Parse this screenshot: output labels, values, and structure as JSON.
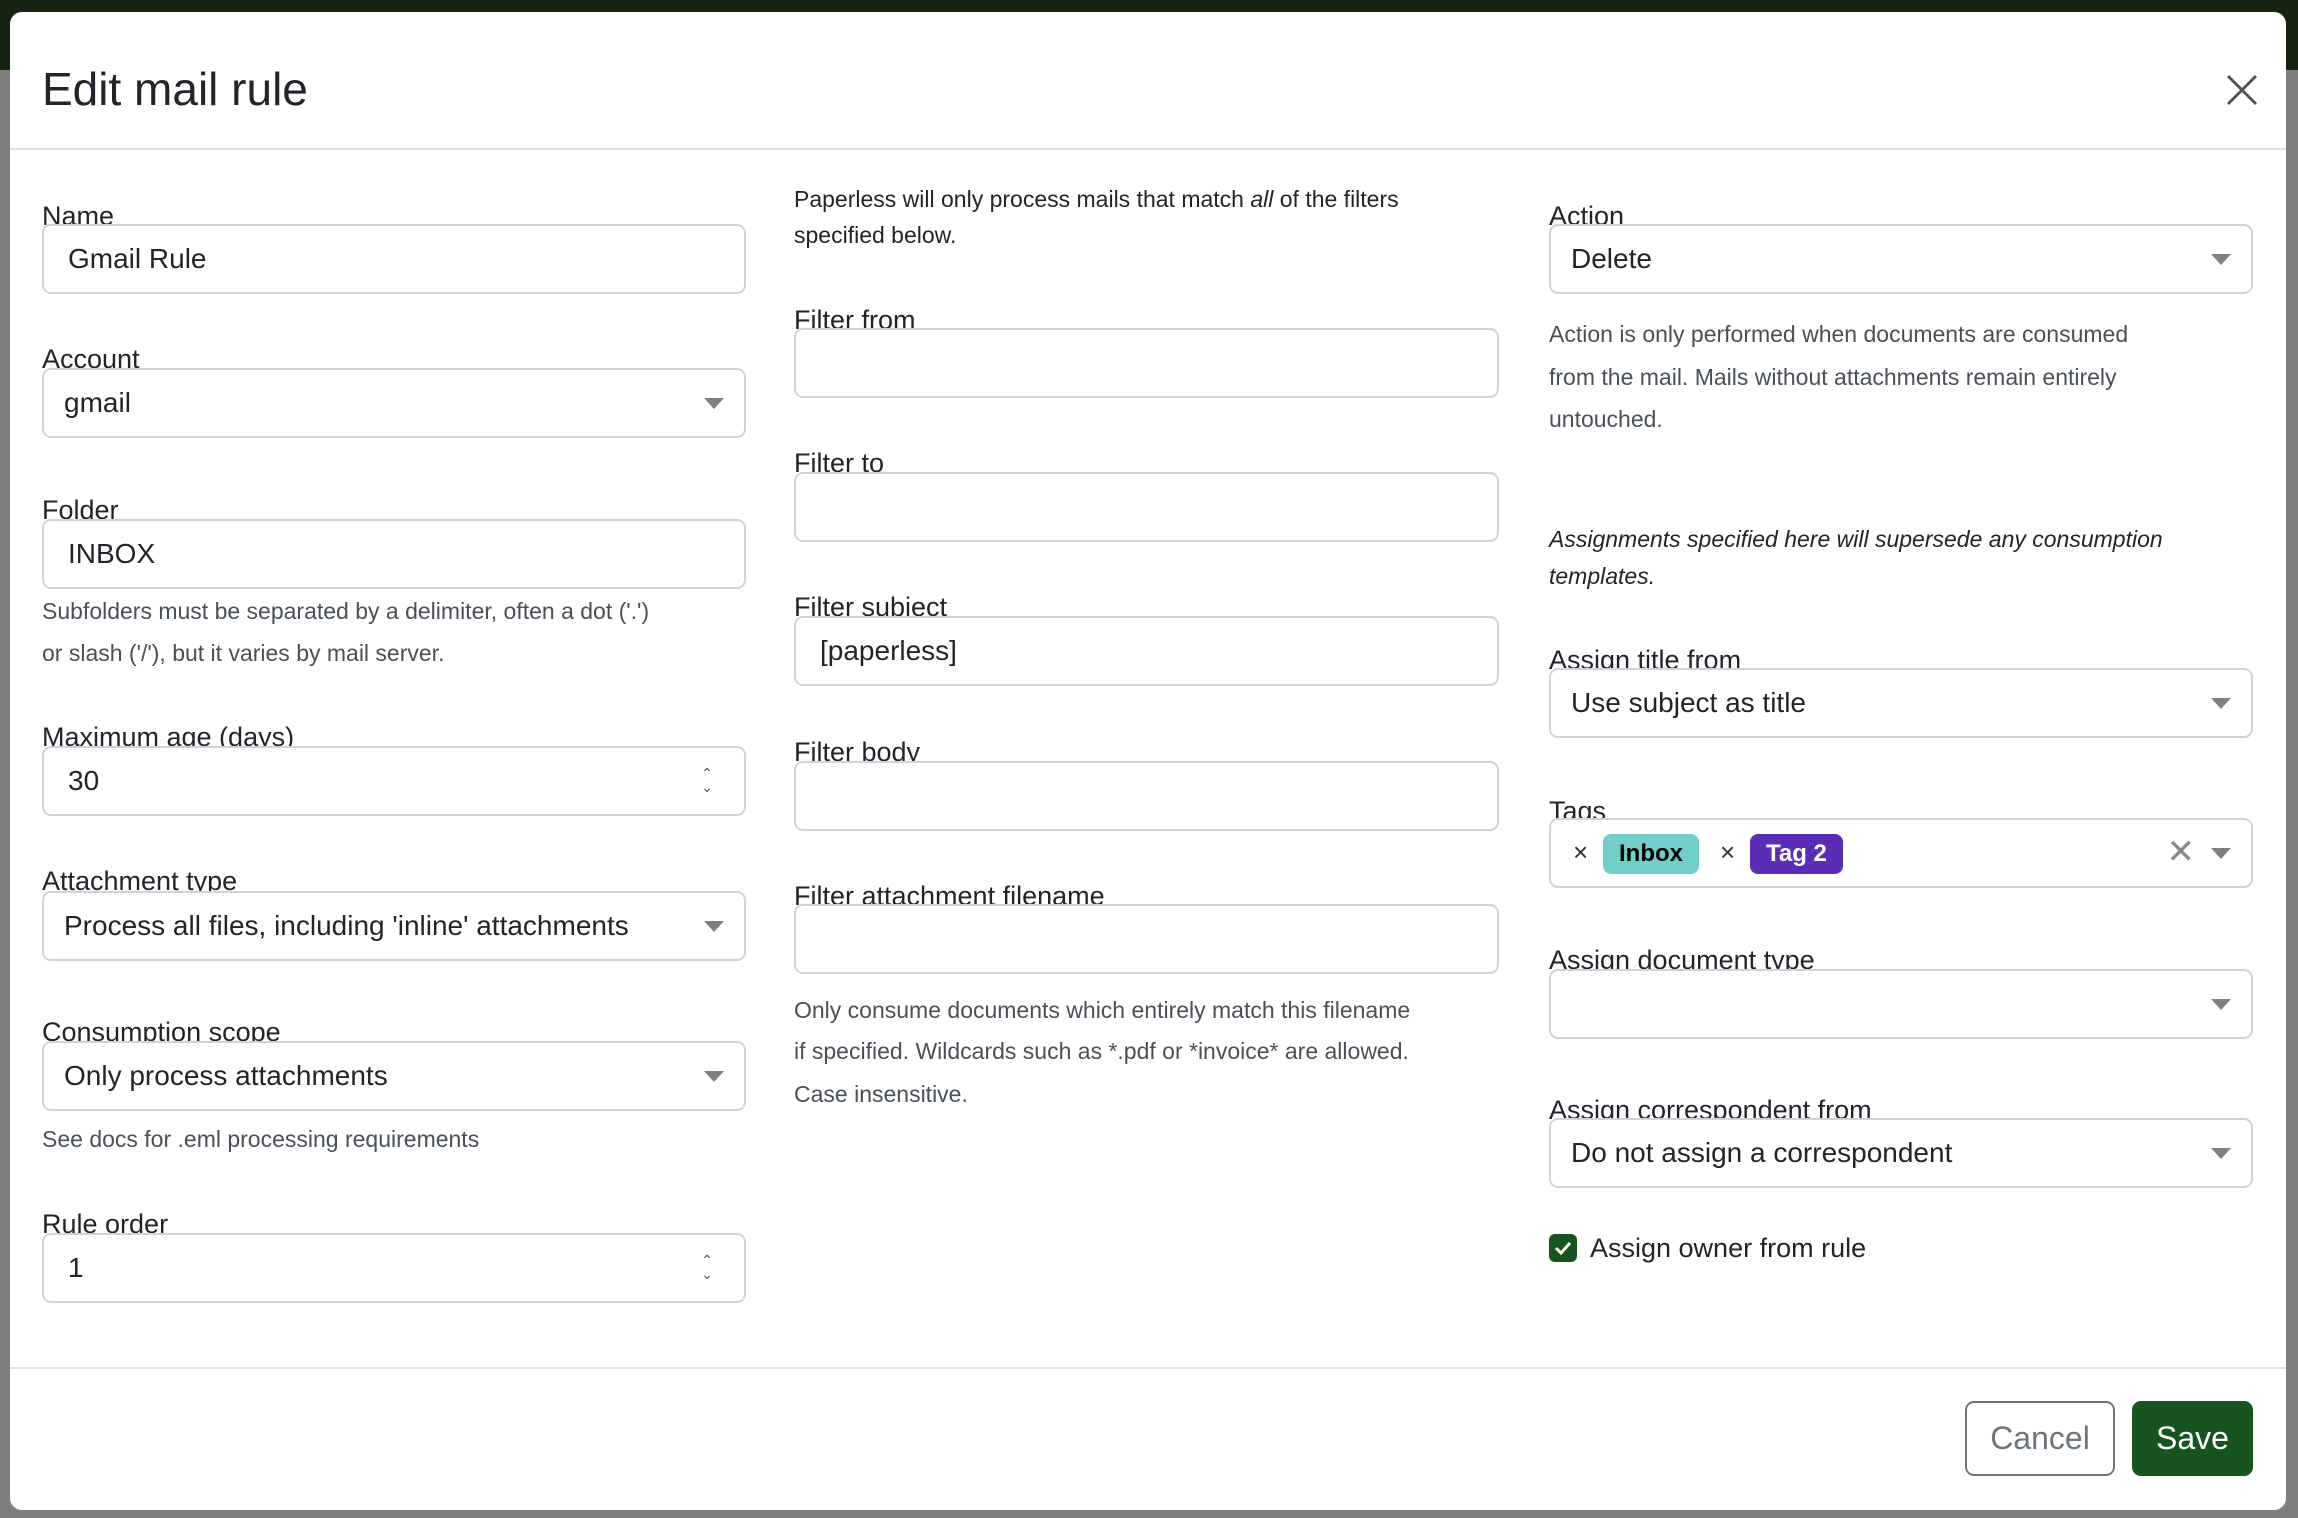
{
  "title": "Edit mail rule",
  "colors": {
    "primary": "#17541f",
    "tag_inbox": "#70d0c9",
    "tag_2": "#5a2db6"
  },
  "left": {
    "name": {
      "label": "Name",
      "value": "Gmail Rule"
    },
    "account": {
      "label": "Account",
      "value": "gmail"
    },
    "folder": {
      "label": "Folder",
      "value": "INBOX",
      "help1": "Subfolders must be separated by a delimiter, often a dot ('.')",
      "help2": "or slash ('/'), but it varies by mail server."
    },
    "max_age": {
      "label": "Maximum age (days)",
      "value": "30"
    },
    "attachment_type": {
      "label": "Attachment type",
      "value": "Process all files, including 'inline' attachments"
    },
    "consumption_scope": {
      "label": "Consumption scope",
      "value": "Only process attachments",
      "help": "See docs for .eml processing requirements"
    },
    "rule_order": {
      "label": "Rule order",
      "value": "1"
    }
  },
  "middle": {
    "intro_pre": "Paperless will only process mails that match ",
    "intro_em": "all",
    "intro_post": " of the filters",
    "intro_line2": "specified below.",
    "filter_from": {
      "label": "Filter from",
      "value": ""
    },
    "filter_to": {
      "label": "Filter to",
      "value": ""
    },
    "filter_subject": {
      "label": "Filter subject",
      "value": "[paperless]"
    },
    "filter_body": {
      "label": "Filter body",
      "value": ""
    },
    "filter_attachment": {
      "label": "Filter attachment filename",
      "value": "",
      "help1": "Only consume documents which entirely match this filename",
      "help2": "if specified. Wildcards such as *.pdf or *invoice* are allowed.",
      "help3": "Case insensitive."
    }
  },
  "right": {
    "action": {
      "label": "Action",
      "value": "Delete",
      "help1": "Action is only performed when documents are consumed",
      "help2": "from the mail. Mails without attachments remain entirely",
      "help3": "untouched."
    },
    "assign_note1": "Assignments specified here will supersede any consumption",
    "assign_note2": "templates.",
    "assign_title": {
      "label": "Assign title from",
      "value": "Use subject as title"
    },
    "tags": {
      "label": "Tags",
      "items": [
        "Inbox",
        "Tag 2"
      ],
      "remove_glyph": "×"
    },
    "doc_type": {
      "label": "Assign document type",
      "value": ""
    },
    "correspondent": {
      "label": "Assign correspondent from",
      "value": "Do not assign a correspondent"
    },
    "owner": {
      "label": "Assign owner from rule",
      "checked": true
    }
  },
  "footer": {
    "cancel": "Cancel",
    "save": "Save"
  }
}
